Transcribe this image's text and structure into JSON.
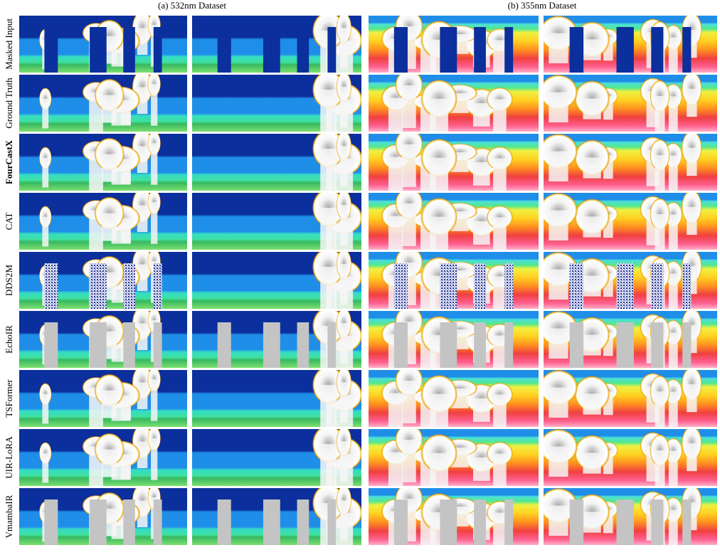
{
  "columns": [
    "(a) 532nm Dataset",
    "(b) 355nm Dataset"
  ],
  "rows": [
    "Masked Input",
    "Ground Truth",
    "FourCastX",
    "CAT",
    "DDS2M",
    "EchoIR",
    "TSFormer",
    "UIR-LoRA",
    "VmambaIR"
  ]
}
